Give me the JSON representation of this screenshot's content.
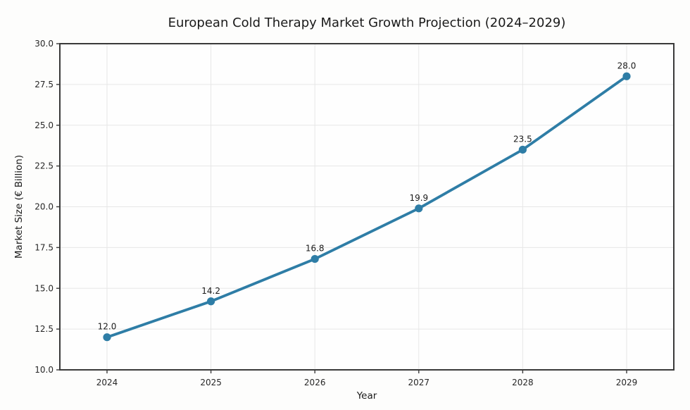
{
  "chart_data": {
    "type": "line",
    "title": "European Cold Therapy Market Growth Projection (2024–2029)",
    "xlabel": "Year",
    "ylabel": "Market Size (€ Billion)",
    "categories": [
      "2024",
      "2025",
      "2026",
      "2027",
      "2028",
      "2029"
    ],
    "series": [
      {
        "name": "Market Size",
        "values": [
          12.0,
          14.2,
          16.8,
          19.9,
          23.5,
          28.0
        ],
        "point_labels": [
          "12.0",
          "14.2",
          "16.8",
          "19.9",
          "23.5",
          "28.0"
        ]
      }
    ],
    "ylim": [
      10.0,
      30.0
    ],
    "yticks": [
      10.0,
      12.5,
      15.0,
      17.5,
      20.0,
      22.5,
      25.0,
      27.5,
      30.0
    ],
    "ytick_labels": [
      "10.0",
      "12.5",
      "15.0",
      "17.5",
      "20.0",
      "22.5",
      "25.0",
      "27.5",
      "30.0"
    ],
    "grid": true,
    "legend_position": "none",
    "colors": {
      "line": "#2e7da6",
      "marker": "#2e7da6",
      "grid": "#e7e7e7",
      "spine": "#3a3a3a",
      "tick": "#3a3a3a",
      "text": "#1a1a1a",
      "background": "#fdfdfc",
      "plot_background": "#fefefe"
    }
  }
}
